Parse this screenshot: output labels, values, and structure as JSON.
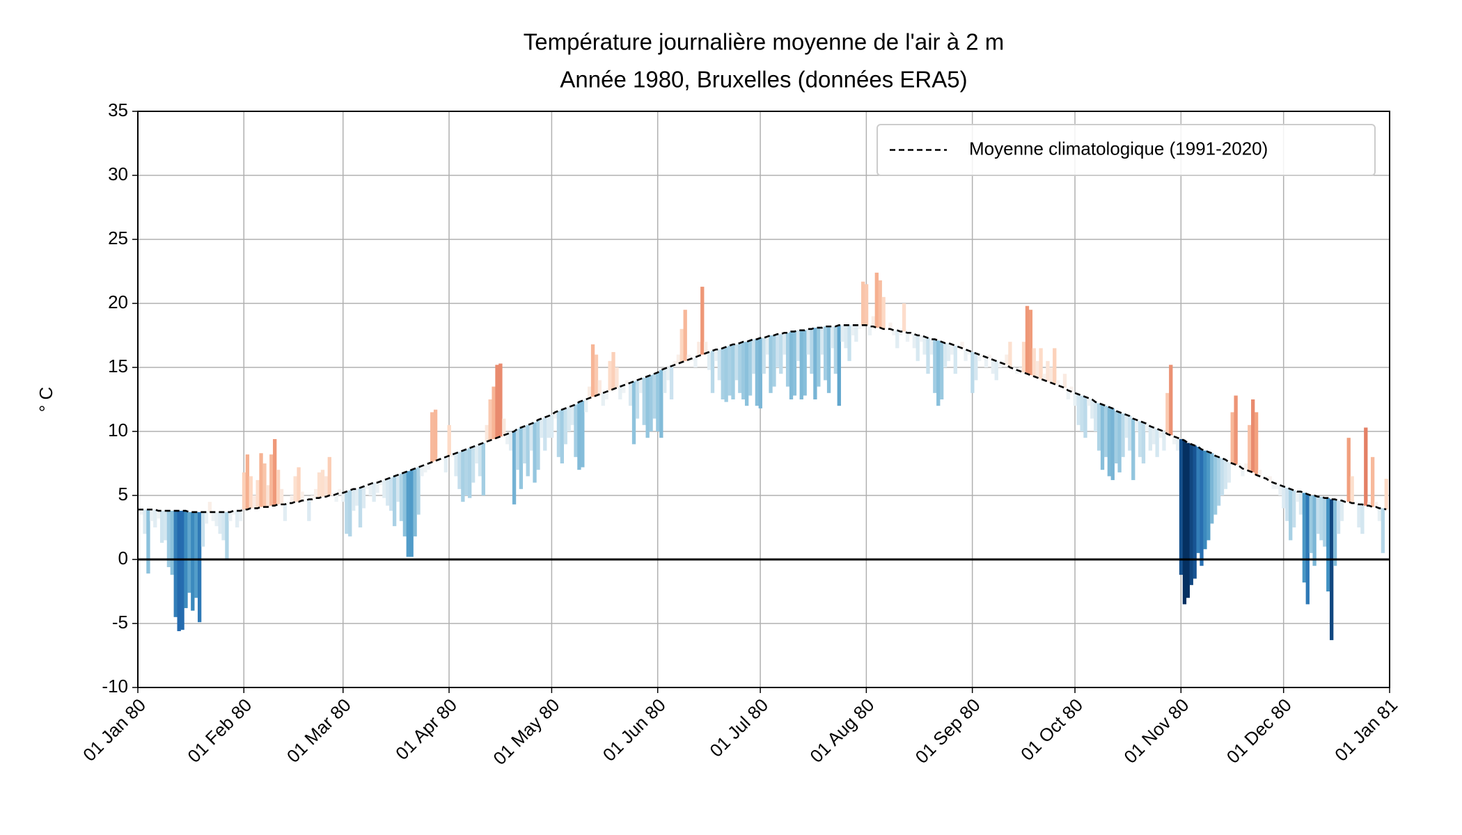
{
  "chart_data": {
    "type": "anomaly-bar",
    "title": "Température journalière moyenne de l'air à 2 m",
    "subtitle": "Année 1980, Bruxelles (données ERA5)",
    "y_label": "° C",
    "colormap": "RdBu_r",
    "grid": true,
    "legend": "upper right",
    "hline": 0,
    "xlim": [
      "1980-01-01",
      "1981-01-01"
    ],
    "xticks": [
      {
        "value": "1980-01-01",
        "label": "01 Jan 80"
      },
      {
        "value": "1980-02-01",
        "label": "01 Feb 80"
      },
      {
        "value": "1980-03-01",
        "label": "01 Mar 80"
      },
      {
        "value": "1980-04-01",
        "label": "01 Apr 80"
      },
      {
        "value": "1980-05-01",
        "label": "01 May 80"
      },
      {
        "value": "1980-06-01",
        "label": "01 Jun 80"
      },
      {
        "value": "1980-07-01",
        "label": "01 Jul 80"
      },
      {
        "value": "1980-08-01",
        "label": "01 Aug 80"
      },
      {
        "value": "1980-09-01",
        "label": "01 Sep 80"
      },
      {
        "value": "1980-10-01",
        "label": "01 Oct 80"
      },
      {
        "value": "1980-11-01",
        "label": "01 Nov 80"
      },
      {
        "value": "1980-12-01",
        "label": "01 Dec 80"
      },
      {
        "value": "1981-01-01",
        "label": "01 Jan 81"
      }
    ],
    "ylim": [
      -10,
      35
    ],
    "yticks": [
      -10,
      -5,
      0,
      5,
      10,
      15,
      20,
      25,
      30,
      35
    ],
    "x": [
      "1980-01-01",
      "1980-01-02",
      "1980-01-03",
      "1980-01-04",
      "1980-01-05",
      "1980-01-06",
      "1980-01-07",
      "1980-01-08",
      "1980-01-09",
      "1980-01-10",
      "1980-01-11",
      "1980-01-12",
      "1980-01-13",
      "1980-01-14",
      "1980-01-15",
      "1980-01-16",
      "1980-01-17",
      "1980-01-18",
      "1980-01-19",
      "1980-01-20",
      "1980-01-21",
      "1980-01-22",
      "1980-01-23",
      "1980-01-24",
      "1980-01-25",
      "1980-01-26",
      "1980-01-27",
      "1980-01-28",
      "1980-01-29",
      "1980-01-30",
      "1980-01-31",
      "1980-02-01",
      "1980-02-02",
      "1980-02-03",
      "1980-02-04",
      "1980-02-05",
      "1980-02-06",
      "1980-02-07",
      "1980-02-08",
      "1980-02-09",
      "1980-02-10",
      "1980-02-11",
      "1980-02-12",
      "1980-02-13",
      "1980-02-14",
      "1980-02-15",
      "1980-02-16",
      "1980-02-17",
      "1980-02-18",
      "1980-02-19",
      "1980-02-20",
      "1980-02-21",
      "1980-02-22",
      "1980-02-23",
      "1980-02-24",
      "1980-02-25",
      "1980-02-26",
      "1980-02-27",
      "1980-02-28",
      "1980-02-29",
      "1980-03-01",
      "1980-03-02",
      "1980-03-03",
      "1980-03-04",
      "1980-03-05",
      "1980-03-06",
      "1980-03-07",
      "1980-03-08",
      "1980-03-09",
      "1980-03-10",
      "1980-03-11",
      "1980-03-12",
      "1980-03-13",
      "1980-03-14",
      "1980-03-15",
      "1980-03-16",
      "1980-03-17",
      "1980-03-18",
      "1980-03-19",
      "1980-03-20",
      "1980-03-21",
      "1980-03-22",
      "1980-03-23",
      "1980-03-24",
      "1980-03-25",
      "1980-03-26",
      "1980-03-27",
      "1980-03-28",
      "1980-03-29",
      "1980-03-30",
      "1980-03-31",
      "1980-04-01",
      "1980-04-02",
      "1980-04-03",
      "1980-04-04",
      "1980-04-05",
      "1980-04-06",
      "1980-04-07",
      "1980-04-08",
      "1980-04-09",
      "1980-04-10",
      "1980-04-11",
      "1980-04-12",
      "1980-04-13",
      "1980-04-14",
      "1980-04-15",
      "1980-04-16",
      "1980-04-17",
      "1980-04-18",
      "1980-04-19",
      "1980-04-20",
      "1980-04-21",
      "1980-04-22",
      "1980-04-23",
      "1980-04-24",
      "1980-04-25",
      "1980-04-26",
      "1980-04-27",
      "1980-04-28",
      "1980-04-29",
      "1980-04-30",
      "1980-05-01",
      "1980-05-02",
      "1980-05-03",
      "1980-05-04",
      "1980-05-05",
      "1980-05-06",
      "1980-05-07",
      "1980-05-08",
      "1980-05-09",
      "1980-05-10",
      "1980-05-11",
      "1980-05-12",
      "1980-05-13",
      "1980-05-14",
      "1980-05-15",
      "1980-05-16",
      "1980-05-17",
      "1980-05-18",
      "1980-05-19",
      "1980-05-20",
      "1980-05-21",
      "1980-05-22",
      "1980-05-23",
      "1980-05-24",
      "1980-05-25",
      "1980-05-26",
      "1980-05-27",
      "1980-05-28",
      "1980-05-29",
      "1980-05-30",
      "1980-05-31",
      "1980-06-01",
      "1980-06-02",
      "1980-06-03",
      "1980-06-04",
      "1980-06-05",
      "1980-06-06",
      "1980-06-07",
      "1980-06-08",
      "1980-06-09",
      "1980-06-10",
      "1980-06-11",
      "1980-06-12",
      "1980-06-13",
      "1980-06-14",
      "1980-06-15",
      "1980-06-16",
      "1980-06-17",
      "1980-06-18",
      "1980-06-19",
      "1980-06-20",
      "1980-06-21",
      "1980-06-22",
      "1980-06-23",
      "1980-06-24",
      "1980-06-25",
      "1980-06-26",
      "1980-06-27",
      "1980-06-28",
      "1980-06-29",
      "1980-06-30",
      "1980-07-01",
      "1980-07-02",
      "1980-07-03",
      "1980-07-04",
      "1980-07-05",
      "1980-07-06",
      "1980-07-07",
      "1980-07-08",
      "1980-07-09",
      "1980-07-10",
      "1980-07-11",
      "1980-07-12",
      "1980-07-13",
      "1980-07-14",
      "1980-07-15",
      "1980-07-16",
      "1980-07-17",
      "1980-07-18",
      "1980-07-19",
      "1980-07-20",
      "1980-07-21",
      "1980-07-22",
      "1980-07-23",
      "1980-07-24",
      "1980-07-25",
      "1980-07-26",
      "1980-07-27",
      "1980-07-28",
      "1980-07-29",
      "1980-07-30",
      "1980-07-31",
      "1980-08-01",
      "1980-08-02",
      "1980-08-03",
      "1980-08-04",
      "1980-08-05",
      "1980-08-06",
      "1980-08-07",
      "1980-08-08",
      "1980-08-09",
      "1980-08-10",
      "1980-08-11",
      "1980-08-12",
      "1980-08-13",
      "1980-08-14",
      "1980-08-15",
      "1980-08-16",
      "1980-08-17",
      "1980-08-18",
      "1980-08-19",
      "1980-08-20",
      "1980-08-21",
      "1980-08-22",
      "1980-08-23",
      "1980-08-24",
      "1980-08-25",
      "1980-08-26",
      "1980-08-27",
      "1980-08-28",
      "1980-08-29",
      "1980-08-30",
      "1980-08-31",
      "1980-09-01",
      "1980-09-02",
      "1980-09-03",
      "1980-09-04",
      "1980-09-05",
      "1980-09-06",
      "1980-09-07",
      "1980-09-08",
      "1980-09-09",
      "1980-09-10",
      "1980-09-11",
      "1980-09-12",
      "1980-09-13",
      "1980-09-14",
      "1980-09-15",
      "1980-09-16",
      "1980-09-17",
      "1980-09-18",
      "1980-09-19",
      "1980-09-20",
      "1980-09-21",
      "1980-09-22",
      "1980-09-23",
      "1980-09-24",
      "1980-09-25",
      "1980-09-26",
      "1980-09-27",
      "1980-09-28",
      "1980-09-29",
      "1980-09-30",
      "1980-10-01",
      "1980-10-02",
      "1980-10-03",
      "1980-10-04",
      "1980-10-05",
      "1980-10-06",
      "1980-10-07",
      "1980-10-08",
      "1980-10-09",
      "1980-10-10",
      "1980-10-11",
      "1980-10-12",
      "1980-10-13",
      "1980-10-14",
      "1980-10-15",
      "1980-10-16",
      "1980-10-17",
      "1980-10-18",
      "1980-10-19",
      "1980-10-20",
      "1980-10-21",
      "1980-10-22",
      "1980-10-23",
      "1980-10-24",
      "1980-10-25",
      "1980-10-26",
      "1980-10-27",
      "1980-10-28",
      "1980-10-29",
      "1980-10-30",
      "1980-10-31",
      "1980-11-01",
      "1980-11-02",
      "1980-11-03",
      "1980-11-04",
      "1980-11-05",
      "1980-11-06",
      "1980-11-07",
      "1980-11-08",
      "1980-11-09",
      "1980-11-10",
      "1980-11-11",
      "1980-11-12",
      "1980-11-13",
      "1980-11-14",
      "1980-11-15",
      "1980-11-16",
      "1980-11-17",
      "1980-11-18",
      "1980-11-19",
      "1980-11-20",
      "1980-11-21",
      "1980-11-22",
      "1980-11-23",
      "1980-11-24",
      "1980-11-25",
      "1980-11-26",
      "1980-11-27",
      "1980-11-28",
      "1980-11-29",
      "1980-11-30",
      "1980-12-01",
      "1980-12-02",
      "1980-12-03",
      "1980-12-04",
      "1980-12-05",
      "1980-12-06",
      "1980-12-07",
      "1980-12-08",
      "1980-12-09",
      "1980-12-10",
      "1980-12-11",
      "1980-12-12",
      "1980-12-13",
      "1980-12-14",
      "1980-12-15",
      "1980-12-16",
      "1980-12-17",
      "1980-12-18",
      "1980-12-19",
      "1980-12-20",
      "1980-12-21",
      "1980-12-22",
      "1980-12-23",
      "1980-12-24",
      "1980-12-25",
      "1980-12-26",
      "1980-12-27",
      "1980-12-28",
      "1980-12-29",
      "1980-12-30",
      "1980-12-31"
    ],
    "values": [
      3.8,
      3.5,
      2.0,
      -1.1,
      3.0,
      2.5,
      3.2,
      1.3,
      1.5,
      -0.6,
      -1.2,
      -4.5,
      -5.6,
      -5.5,
      -3.8,
      -2.6,
      -4.0,
      -3.0,
      -4.9,
      1.0,
      2.8,
      4.5,
      3.0,
      2.6,
      2.0,
      1.5,
      0.0,
      3.0,
      3.5,
      2.5,
      3.0,
      6.8,
      8.2,
      6.5,
      5.0,
      6.2,
      8.3,
      7.5,
      5.8,
      8.2,
      9.4,
      7.0,
      5.5,
      3.0,
      4.5,
      5.0,
      6.5,
      7.2,
      5.3,
      4.5,
      3.0,
      5.0,
      5.5,
      6.8,
      7.0,
      6.5,
      8.0,
      5.2,
      4.5,
      5.5,
      4.5,
      2.0,
      1.8,
      3.8,
      4.2,
      2.5,
      4.0,
      5.5,
      5.0,
      4.5,
      5.2,
      5.8,
      4.8,
      4.2,
      3.8,
      2.6,
      4.5,
      3.0,
      1.8,
      0.2,
      0.2,
      1.8,
      3.5,
      6.5,
      6.8,
      7.0,
      11.5,
      11.7,
      8.0,
      7.8,
      6.8,
      10.5,
      8.0,
      6.5,
      5.5,
      4.5,
      5.0,
      4.8,
      6.0,
      7.5,
      6.5,
      5.0,
      10.5,
      12.5,
      13.5,
      15.2,
      15.3,
      11.0,
      9.0,
      8.5,
      4.3,
      7.0,
      5.5,
      7.5,
      6.5,
      8.5,
      6.0,
      7.0,
      9.5,
      8.5,
      9.5,
      9.5,
      11.0,
      8.0,
      7.5,
      9.0,
      10.0,
      10.5,
      8.0,
      7.0,
      7.2,
      11.5,
      13.5,
      16.8,
      16.0,
      14.0,
      12.0,
      12.5,
      15.5,
      16.2,
      15.0,
      12.5,
      13.0,
      14.0,
      12.0,
      9.0,
      11.0,
      13.0,
      10.5,
      9.5,
      10.0,
      11.0,
      10.0,
      9.5,
      13.0,
      14.0,
      12.5,
      15.5,
      16.0,
      18.0,
      19.5,
      16.0,
      15.5,
      15.0,
      17.0,
      21.3,
      17.0,
      14.8,
      13.0,
      15.5,
      14.0,
      12.5,
      12.3,
      12.8,
      12.5,
      14.0,
      13.0,
      12.5,
      12.0,
      12.8,
      14.5,
      12.0,
      11.8,
      14.5,
      16.0,
      13.0,
      13.5,
      15.0,
      14.5,
      16.0,
      13.5,
      12.5,
      12.8,
      15.5,
      12.5,
      12.8,
      16.0,
      14.5,
      12.5,
      13.5,
      16.0,
      14.0,
      13.0,
      16.5,
      14.5,
      12.0,
      17.0,
      16.5,
      15.5,
      17.5,
      17.0,
      18.0,
      21.7,
      21.5,
      17.5,
      19.0,
      22.4,
      21.8,
      20.5,
      18.0,
      18.5,
      17.5,
      16.5,
      17.5,
      20.0,
      17.0,
      17.5,
      16.5,
      15.5,
      17.0,
      16.0,
      14.5,
      16.0,
      13.0,
      12.0,
      12.5,
      15.0,
      15.5,
      16.0,
      14.5,
      16.5,
      17.0,
      15.5,
      16.0,
      13.0,
      14.0,
      15.5,
      16.0,
      15.0,
      16.0,
      14.5,
      14.0,
      15.0,
      15.5,
      16.0,
      17.0,
      15.0,
      14.5,
      15.0,
      17.0,
      19.8,
      19.5,
      16.5,
      15.5,
      16.5,
      14.5,
      15.5,
      15.0,
      16.5,
      14.0,
      13.5,
      14.5,
      12.5,
      13.5,
      12.0,
      10.5,
      10.0,
      9.5,
      12.0,
      11.0,
      10.0,
      8.5,
      7.0,
      8.0,
      6.5,
      6.2,
      7.5,
      6.8,
      8.0,
      9.5,
      8.5,
      6.2,
      10.0,
      8.0,
      7.5,
      10.0,
      8.5,
      9.0,
      8.0,
      9.5,
      8.5,
      13.0,
      15.2,
      9.0,
      8.5,
      -1.2,
      -3.5,
      -3.0,
      -2.0,
      -1.5,
      0.5,
      -0.5,
      0.8,
      1.5,
      2.8,
      3.5,
      4.2,
      5.0,
      5.5,
      6.0,
      11.5,
      12.8,
      7.5,
      6.5,
      7.5,
      10.5,
      12.5,
      11.5,
      7.0,
      6.5,
      6.5,
      6.5,
      5.5,
      5.5,
      5.0,
      4.0,
      3.0,
      1.5,
      2.5,
      4.5,
      3.5,
      -1.8,
      -3.5,
      0.5,
      -0.5,
      2.0,
      1.5,
      1.0,
      -2.5,
      -6.3,
      -0.5,
      2.0,
      3.0,
      4.5,
      9.5,
      6.5,
      4.5,
      2.5,
      2.0,
      10.3,
      4.5,
      8.0,
      4.5,
      3.0,
      0.5,
      6.3
    ],
    "series": [
      {
        "name": "Moyenne climatologique (1991-2020)",
        "color": "#000000",
        "dash": true,
        "values": [
          3.9,
          3.9,
          3.9,
          3.9,
          3.9,
          3.9,
          3.8,
          3.8,
          3.8,
          3.8,
          3.8,
          3.8,
          3.8,
          3.8,
          3.8,
          3.7,
          3.7,
          3.7,
          3.7,
          3.7,
          3.7,
          3.7,
          3.7,
          3.7,
          3.7,
          3.7,
          3.7,
          3.7,
          3.8,
          3.8,
          3.8,
          3.9,
          3.9,
          4.0,
          4.0,
          4.0,
          4.1,
          4.1,
          4.1,
          4.2,
          4.2,
          4.3,
          4.3,
          4.3,
          4.4,
          4.4,
          4.5,
          4.5,
          4.6,
          4.6,
          4.7,
          4.7,
          4.8,
          4.8,
          4.9,
          4.9,
          5.0,
          5.0,
          5.1,
          5.2,
          5.2,
          5.3,
          5.4,
          5.5,
          5.5,
          5.6,
          5.7,
          5.8,
          5.9,
          6.0,
          6.0,
          6.1,
          6.2,
          6.3,
          6.4,
          6.5,
          6.6,
          6.7,
          6.8,
          6.9,
          7.0,
          7.1,
          7.2,
          7.3,
          7.4,
          7.5,
          7.6,
          7.7,
          7.8,
          7.9,
          8.0,
          8.1,
          8.2,
          8.3,
          8.4,
          8.5,
          8.6,
          8.7,
          8.8,
          8.9,
          9.0,
          9.1,
          9.2,
          9.3,
          9.4,
          9.5,
          9.6,
          9.7,
          9.8,
          9.9,
          10.0,
          10.2,
          10.3,
          10.4,
          10.5,
          10.6,
          10.7,
          10.9,
          11.0,
          11.1,
          11.2,
          11.3,
          11.5,
          11.6,
          11.7,
          11.8,
          11.9,
          12.0,
          12.1,
          12.3,
          12.4,
          12.5,
          12.6,
          12.7,
          12.8,
          12.9,
          13.0,
          13.1,
          13.2,
          13.3,
          13.4,
          13.5,
          13.6,
          13.7,
          13.8,
          13.9,
          14.0,
          14.1,
          14.2,
          14.3,
          14.4,
          14.5,
          14.6,
          14.8,
          14.9,
          15.0,
          15.1,
          15.2,
          15.3,
          15.4,
          15.5,
          15.6,
          15.7,
          15.8,
          15.9,
          16.0,
          16.1,
          16.2,
          16.3,
          16.4,
          16.4,
          16.5,
          16.6,
          16.7,
          16.8,
          16.8,
          16.9,
          17.0,
          17.0,
          17.1,
          17.2,
          17.2,
          17.3,
          17.3,
          17.4,
          17.5,
          17.5,
          17.6,
          17.6,
          17.7,
          17.7,
          17.8,
          17.8,
          17.9,
          17.9,
          17.9,
          18.0,
          18.0,
          18.1,
          18.1,
          18.1,
          18.2,
          18.2,
          18.2,
          18.2,
          18.3,
          18.3,
          18.3,
          18.3,
          18.3,
          18.3,
          18.3,
          18.3,
          18.3,
          18.2,
          18.2,
          18.1,
          18.1,
          18.0,
          18.0,
          18.0,
          17.9,
          17.9,
          17.8,
          17.8,
          17.7,
          17.7,
          17.6,
          17.5,
          17.5,
          17.4,
          17.3,
          17.2,
          17.2,
          17.1,
          17.0,
          16.9,
          16.9,
          16.8,
          16.7,
          16.6,
          16.5,
          16.4,
          16.3,
          16.2,
          16.1,
          16.0,
          15.9,
          15.8,
          15.7,
          15.6,
          15.5,
          15.4,
          15.3,
          15.2,
          15.0,
          14.9,
          14.8,
          14.7,
          14.6,
          14.5,
          14.4,
          14.3,
          14.2,
          14.1,
          14.0,
          13.9,
          13.8,
          13.7,
          13.6,
          13.5,
          13.4,
          13.2,
          13.1,
          13.0,
          12.9,
          12.8,
          12.7,
          12.6,
          12.5,
          12.3,
          12.2,
          12.1,
          12.0,
          11.9,
          11.8,
          11.6,
          11.5,
          11.4,
          11.3,
          11.2,
          11.0,
          10.9,
          10.8,
          10.7,
          10.6,
          10.4,
          10.3,
          10.2,
          10.1,
          10.0,
          9.8,
          9.7,
          9.6,
          9.5,
          9.4,
          9.3,
          9.1,
          9.0,
          8.9,
          8.8,
          8.6,
          8.5,
          8.4,
          8.3,
          8.1,
          8.0,
          7.9,
          7.8,
          7.6,
          7.5,
          7.4,
          7.3,
          7.1,
          7.0,
          6.9,
          6.8,
          6.6,
          6.5,
          6.4,
          6.3,
          6.1,
          6.0,
          5.9,
          5.8,
          5.7,
          5.6,
          5.5,
          5.4,
          5.3,
          5.3,
          5.2,
          5.1,
          5.0,
          5.0,
          4.9,
          4.9,
          4.8,
          4.8,
          4.7,
          4.7,
          4.6,
          4.6,
          4.5,
          4.5,
          4.4,
          4.4,
          4.3,
          4.3,
          4.2,
          4.2,
          4.1,
          4.1,
          4.0,
          4.0,
          3.9
        ]
      }
    ]
  }
}
